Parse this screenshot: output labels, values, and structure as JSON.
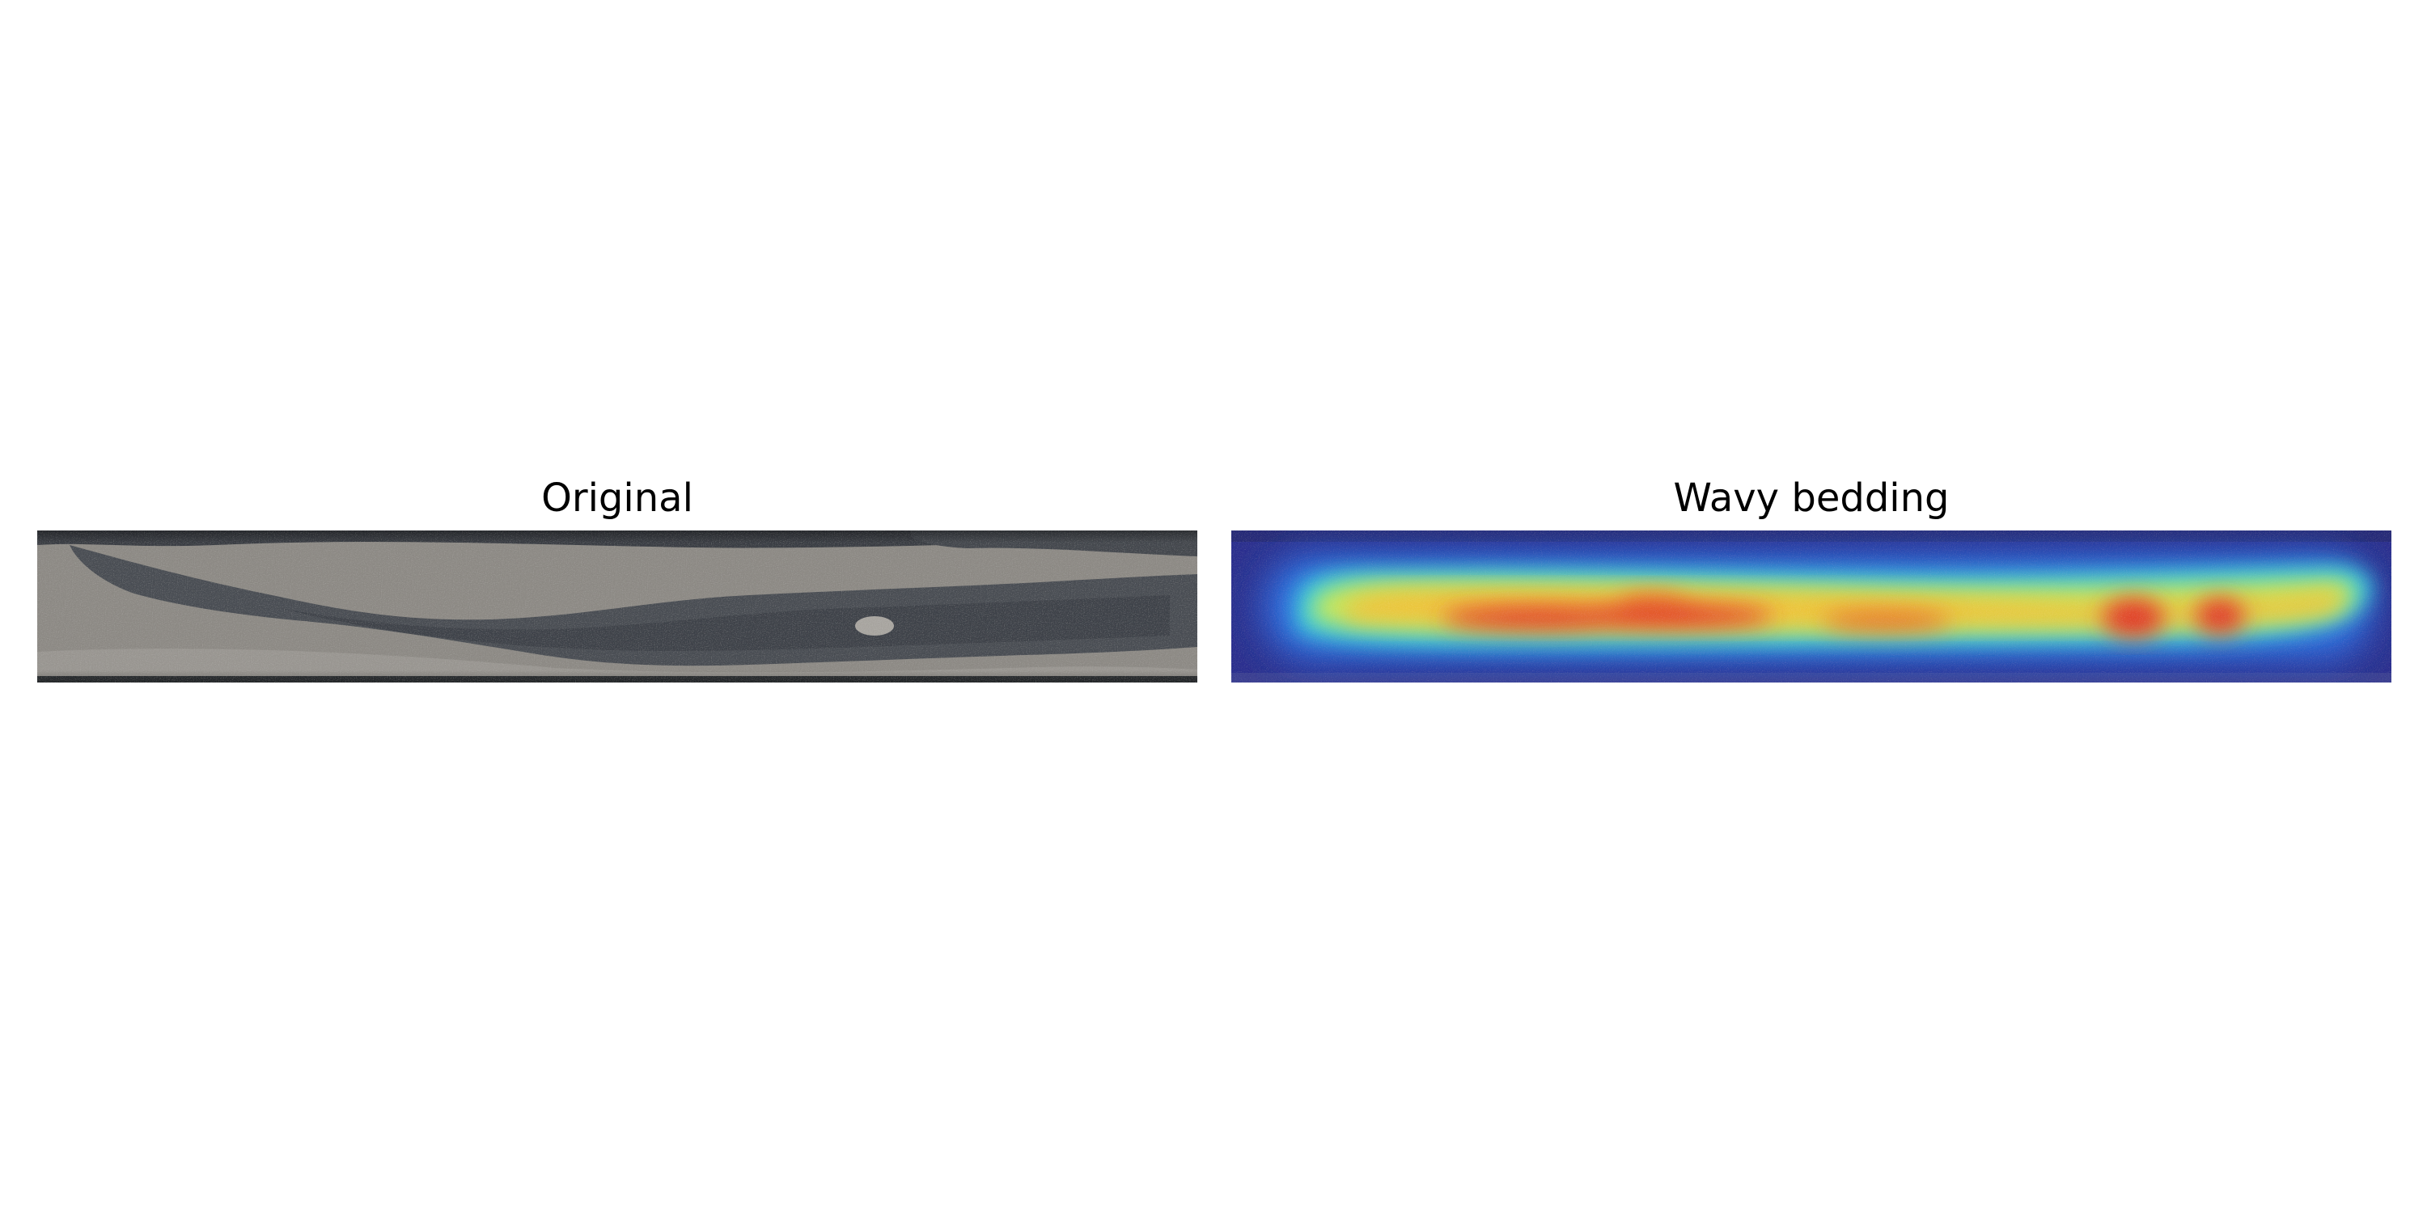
{
  "panels": {
    "original": {
      "title": "Original",
      "colors": {
        "matrix": "#8e8b86",
        "matrix_light": "#a9a6a1",
        "dark_lamina": "#4a4e54",
        "dark_lamina_deep": "#3a3e44",
        "edge_dark": "#2f3236"
      }
    },
    "heatmap": {
      "title": "Wavy bedding",
      "colors": {
        "low": "#2a2f8f",
        "mid_low": "#2f6fe0",
        "mid": "#35d0e0",
        "mid_high": "#c8e85a",
        "high_low": "#f2c23a",
        "high": "#e23a2a"
      }
    }
  }
}
